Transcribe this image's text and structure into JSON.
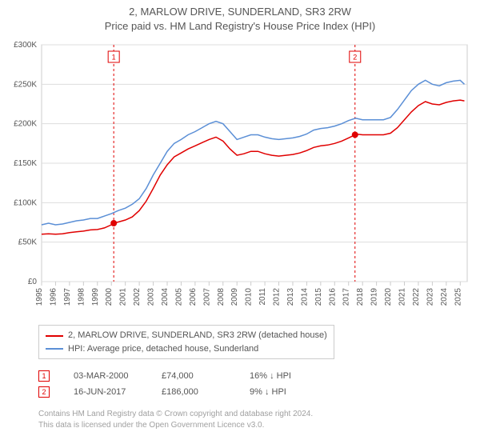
{
  "title": {
    "line1": "2, MARLOW DRIVE, SUNDERLAND, SR3 2RW",
    "line2": "Price paid vs. HM Land Registry's House Price Index (HPI)"
  },
  "chart": {
    "type": "line",
    "background_color": "#ffffff",
    "plot_border_color": "#cccccc",
    "grid_color": "#dddddd",
    "text_color": "#555555",
    "axis_fontsize": 10,
    "x": {
      "ticks": [
        1995,
        1996,
        1997,
        1998,
        1999,
        2000,
        2001,
        2002,
        2003,
        2004,
        2005,
        2006,
        2007,
        2008,
        2009,
        2010,
        2011,
        2012,
        2013,
        2014,
        2015,
        2016,
        2017,
        2018,
        2019,
        2020,
        2021,
        2022,
        2023,
        2024,
        2025
      ],
      "xlim": [
        1995,
        2025.5
      ],
      "tick_rotation": -90
    },
    "y": {
      "ticks": [
        0,
        50000,
        100000,
        150000,
        200000,
        250000,
        300000
      ],
      "tick_labels": [
        "£0",
        "£50K",
        "£100K",
        "£150K",
        "£200K",
        "£250K",
        "£300K"
      ],
      "ylim": [
        0,
        300000
      ]
    },
    "series": [
      {
        "name": "subject",
        "label": "2, MARLOW DRIVE, SUNDERLAND, SR3 2RW (detached house)",
        "color": "#e00000",
        "line_width": 1.5,
        "points": [
          [
            1995.0,
            60000
          ],
          [
            1995.5,
            60500
          ],
          [
            1996.0,
            60000
          ],
          [
            1996.5,
            60500
          ],
          [
            1997.0,
            62000
          ],
          [
            1997.5,
            63000
          ],
          [
            1998.0,
            64000
          ],
          [
            1998.5,
            65500
          ],
          [
            1999.0,
            66000
          ],
          [
            1999.5,
            68000
          ],
          [
            2000.0,
            72000
          ],
          [
            2000.17,
            74000
          ],
          [
            2000.5,
            75500
          ],
          [
            2001.0,
            78000
          ],
          [
            2001.5,
            82000
          ],
          [
            2002.0,
            90000
          ],
          [
            2002.5,
            102000
          ],
          [
            2003.0,
            118000
          ],
          [
            2003.5,
            135000
          ],
          [
            2004.0,
            148000
          ],
          [
            2004.5,
            158000
          ],
          [
            2005.0,
            163000
          ],
          [
            2005.5,
            168000
          ],
          [
            2006.0,
            172000
          ],
          [
            2006.5,
            176000
          ],
          [
            2007.0,
            180000
          ],
          [
            2007.5,
            183000
          ],
          [
            2008.0,
            178000
          ],
          [
            2008.5,
            168000
          ],
          [
            2009.0,
            160000
          ],
          [
            2009.5,
            162000
          ],
          [
            2010.0,
            165000
          ],
          [
            2010.5,
            165000
          ],
          [
            2011.0,
            162000
          ],
          [
            2011.5,
            160000
          ],
          [
            2012.0,
            159000
          ],
          [
            2012.5,
            160000
          ],
          [
            2013.0,
            161000
          ],
          [
            2013.5,
            163000
          ],
          [
            2014.0,
            166000
          ],
          [
            2014.5,
            170000
          ],
          [
            2015.0,
            172000
          ],
          [
            2015.5,
            173000
          ],
          [
            2016.0,
            175000
          ],
          [
            2016.5,
            178000
          ],
          [
            2017.0,
            182000
          ],
          [
            2017.46,
            186000
          ],
          [
            2017.5,
            187000
          ],
          [
            2018.0,
            186000
          ],
          [
            2018.5,
            186000
          ],
          [
            2019.0,
            186000
          ],
          [
            2019.5,
            186000
          ],
          [
            2020.0,
            188000
          ],
          [
            2020.5,
            195000
          ],
          [
            2021.0,
            205000
          ],
          [
            2021.5,
            215000
          ],
          [
            2022.0,
            223000
          ],
          [
            2022.5,
            228000
          ],
          [
            2023.0,
            225000
          ],
          [
            2023.5,
            224000
          ],
          [
            2024.0,
            227000
          ],
          [
            2024.5,
            229000
          ],
          [
            2025.0,
            230000
          ],
          [
            2025.3,
            229000
          ]
        ]
      },
      {
        "name": "hpi",
        "label": "HPI: Average price, detached house, Sunderland",
        "color": "#5b8fd6",
        "line_width": 1.5,
        "points": [
          [
            1995.0,
            72000
          ],
          [
            1995.5,
            74000
          ],
          [
            1996.0,
            72000
          ],
          [
            1996.5,
            73000
          ],
          [
            1997.0,
            75000
          ],
          [
            1997.5,
            77000
          ],
          [
            1998.0,
            78000
          ],
          [
            1998.5,
            80000
          ],
          [
            1999.0,
            80000
          ],
          [
            1999.5,
            83000
          ],
          [
            2000.0,
            86000
          ],
          [
            2000.5,
            90000
          ],
          [
            2001.0,
            93000
          ],
          [
            2001.5,
            98000
          ],
          [
            2002.0,
            105000
          ],
          [
            2002.5,
            118000
          ],
          [
            2003.0,
            135000
          ],
          [
            2003.5,
            150000
          ],
          [
            2004.0,
            165000
          ],
          [
            2004.5,
            175000
          ],
          [
            2005.0,
            180000
          ],
          [
            2005.5,
            186000
          ],
          [
            2006.0,
            190000
          ],
          [
            2006.5,
            195000
          ],
          [
            2007.0,
            200000
          ],
          [
            2007.5,
            203000
          ],
          [
            2008.0,
            200000
          ],
          [
            2008.5,
            190000
          ],
          [
            2009.0,
            180000
          ],
          [
            2009.5,
            183000
          ],
          [
            2010.0,
            186000
          ],
          [
            2010.5,
            186000
          ],
          [
            2011.0,
            183000
          ],
          [
            2011.5,
            181000
          ],
          [
            2012.0,
            180000
          ],
          [
            2012.5,
            181000
          ],
          [
            2013.0,
            182000
          ],
          [
            2013.5,
            184000
          ],
          [
            2014.0,
            187000
          ],
          [
            2014.5,
            192000
          ],
          [
            2015.0,
            194000
          ],
          [
            2015.5,
            195000
          ],
          [
            2016.0,
            197000
          ],
          [
            2016.5,
            200000
          ],
          [
            2017.0,
            204000
          ],
          [
            2017.5,
            207000
          ],
          [
            2018.0,
            205000
          ],
          [
            2018.5,
            205000
          ],
          [
            2019.0,
            205000
          ],
          [
            2019.5,
            205000
          ],
          [
            2020.0,
            208000
          ],
          [
            2020.5,
            218000
          ],
          [
            2021.0,
            230000
          ],
          [
            2021.5,
            242000
          ],
          [
            2022.0,
            250000
          ],
          [
            2022.5,
            255000
          ],
          [
            2023.0,
            250000
          ],
          [
            2023.5,
            248000
          ],
          [
            2024.0,
            252000
          ],
          [
            2024.5,
            254000
          ],
          [
            2025.0,
            255000
          ],
          [
            2025.3,
            250000
          ]
        ]
      }
    ],
    "markers": [
      {
        "id": "1",
        "x": 2000.17,
        "y": 74000,
        "color": "#e00000",
        "vertical_line_color": "#e00000"
      },
      {
        "id": "2",
        "x": 2017.46,
        "y": 186000,
        "color": "#e00000",
        "vertical_line_color": "#e00000"
      }
    ]
  },
  "legend": {
    "items": [
      {
        "color": "#e00000",
        "label": "2, MARLOW DRIVE, SUNDERLAND, SR3 2RW (detached house)"
      },
      {
        "color": "#5b8fd6",
        "label": "HPI: Average price, detached house, Sunderland"
      }
    ]
  },
  "sales": [
    {
      "marker": "1",
      "marker_color": "#e00000",
      "date": "03-MAR-2000",
      "price": "£74,000",
      "diff": "16% ↓ HPI"
    },
    {
      "marker": "2",
      "marker_color": "#e00000",
      "date": "16-JUN-2017",
      "price": "£186,000",
      "diff": "9% ↓ HPI"
    }
  ],
  "footnote": {
    "line1": "Contains HM Land Registry data © Crown copyright and database right 2024.",
    "line2": "This data is licensed under the Open Government Licence v3.0."
  }
}
